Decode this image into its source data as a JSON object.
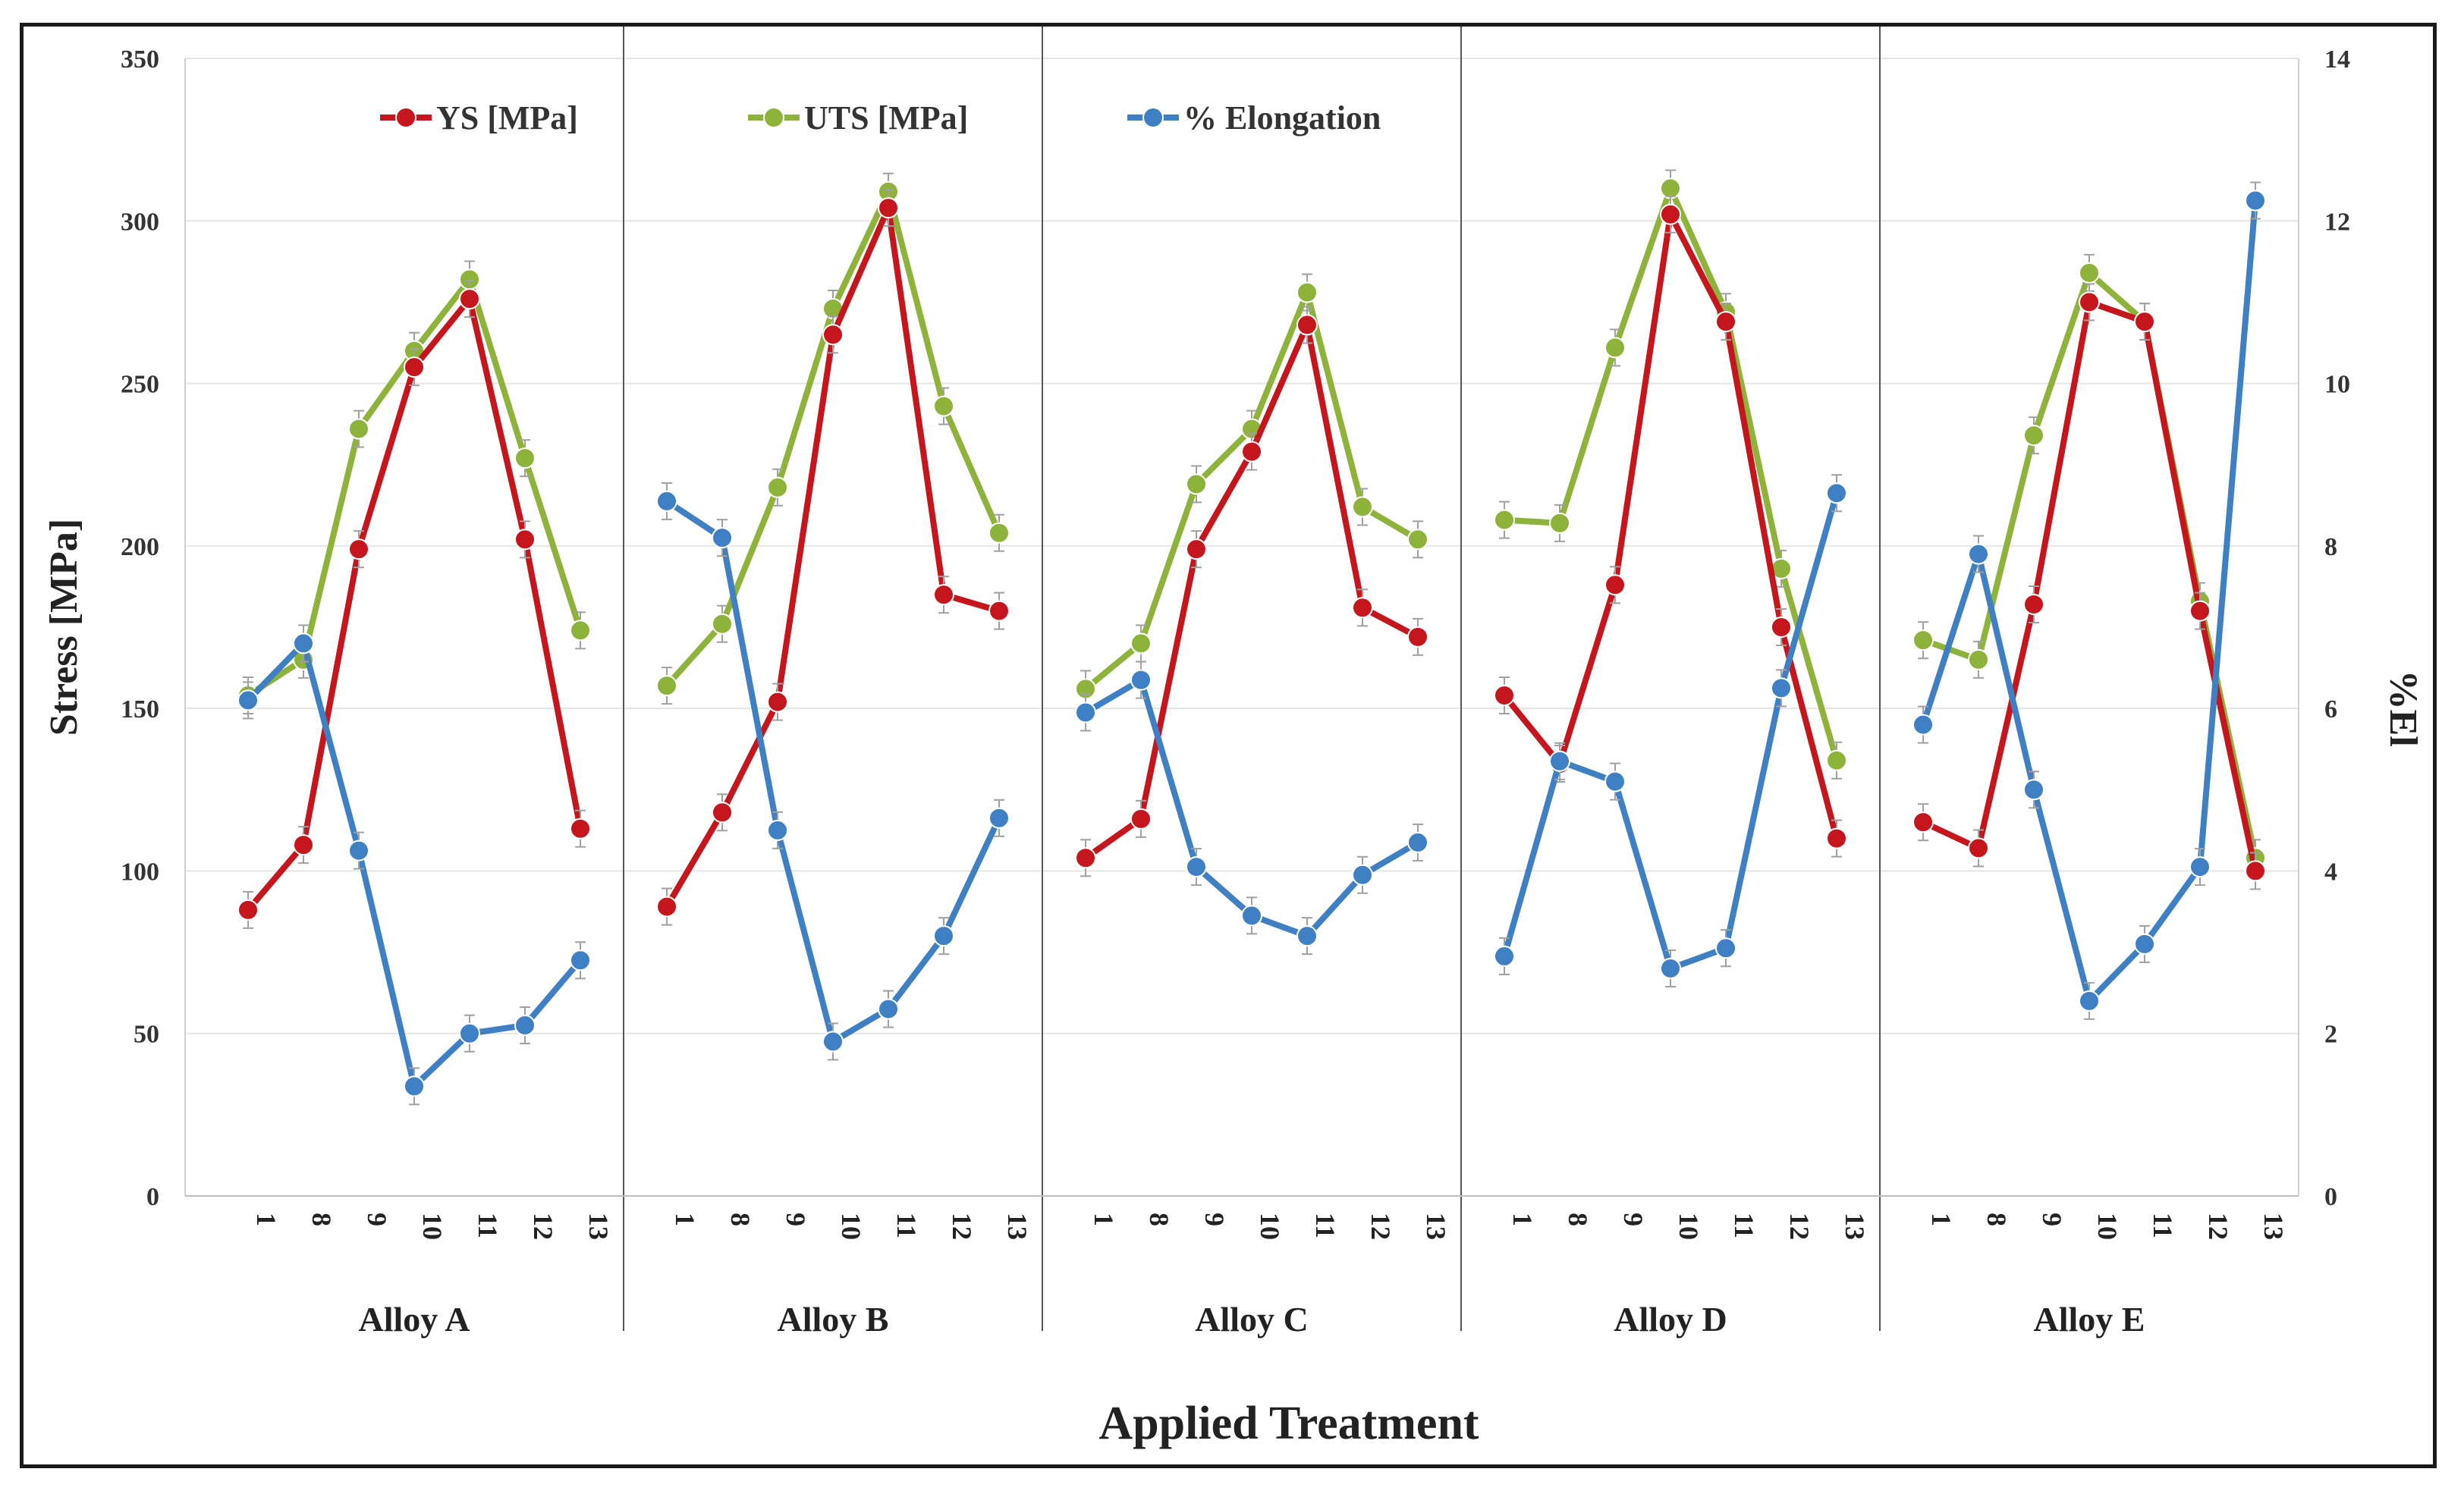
{
  "chart_data": {
    "type": "line",
    "xlabel": "Applied Treatment",
    "ylabel": "Stress [MPa]",
    "y2label": "%El",
    "ylim": [
      0,
      350
    ],
    "y2lim": [
      0,
      14
    ],
    "yticks": [
      0,
      50,
      100,
      150,
      200,
      250,
      300,
      350
    ],
    "y2ticks": [
      0,
      2,
      4,
      6,
      8,
      10,
      12,
      14
    ],
    "grid": true,
    "legend_position": "top",
    "treatments": [
      "1",
      "8",
      "9",
      "10",
      "11",
      "12",
      "13"
    ],
    "groups": [
      {
        "name": "Alloy A",
        "series": {
          "ys": [
            88,
            108,
            199,
            255,
            276,
            202,
            113
          ],
          "uts": [
            154,
            165,
            236,
            260,
            282,
            227,
            174
          ],
          "el": [
            6.1,
            6.8,
            4.25,
            1.35,
            2.0,
            2.1,
            2.9
          ]
        }
      },
      {
        "name": "Alloy B",
        "series": {
          "ys": [
            89,
            118,
            152,
            265,
            304,
            185,
            180
          ],
          "uts": [
            157,
            176,
            218,
            273,
            309,
            243,
            204
          ],
          "el": [
            8.55,
            8.1,
            4.5,
            1.9,
            2.3,
            3.2,
            4.65
          ]
        }
      },
      {
        "name": "Alloy C",
        "series": {
          "ys": [
            104,
            116,
            199,
            229,
            268,
            181,
            172
          ],
          "uts": [
            156,
            170,
            219,
            236,
            278,
            212,
            202
          ],
          "el": [
            5.95,
            6.35,
            4.05,
            3.45,
            3.2,
            3.95,
            4.35
          ]
        }
      },
      {
        "name": "Alloy D",
        "series": {
          "ys": [
            154,
            133,
            188,
            302,
            269,
            175,
            110
          ],
          "uts": [
            208,
            207,
            261,
            310,
            272,
            193,
            134
          ],
          "el": [
            2.95,
            5.35,
            5.1,
            2.8,
            3.05,
            6.25,
            8.65
          ]
        }
      },
      {
        "name": "Alloy E",
        "series": {
          "ys": [
            115,
            107,
            182,
            275,
            269,
            180,
            100
          ],
          "uts": [
            171,
            165,
            234,
            284,
            269,
            183,
            104
          ],
          "el": [
            5.8,
            7.9,
            5.0,
            2.4,
            3.1,
            4.05,
            12.25
          ]
        }
      }
    ],
    "series_meta": [
      {
        "key": "ys",
        "name": "YS [MPa]",
        "color": "#c4161c",
        "axis": "left"
      },
      {
        "key": "uts",
        "name": "UTS [MPa]",
        "color": "#8db33a",
        "axis": "left"
      },
      {
        "key": "el",
        "name": "% Elongation",
        "color": "#3f7fc3",
        "axis": "right"
      }
    ]
  }
}
